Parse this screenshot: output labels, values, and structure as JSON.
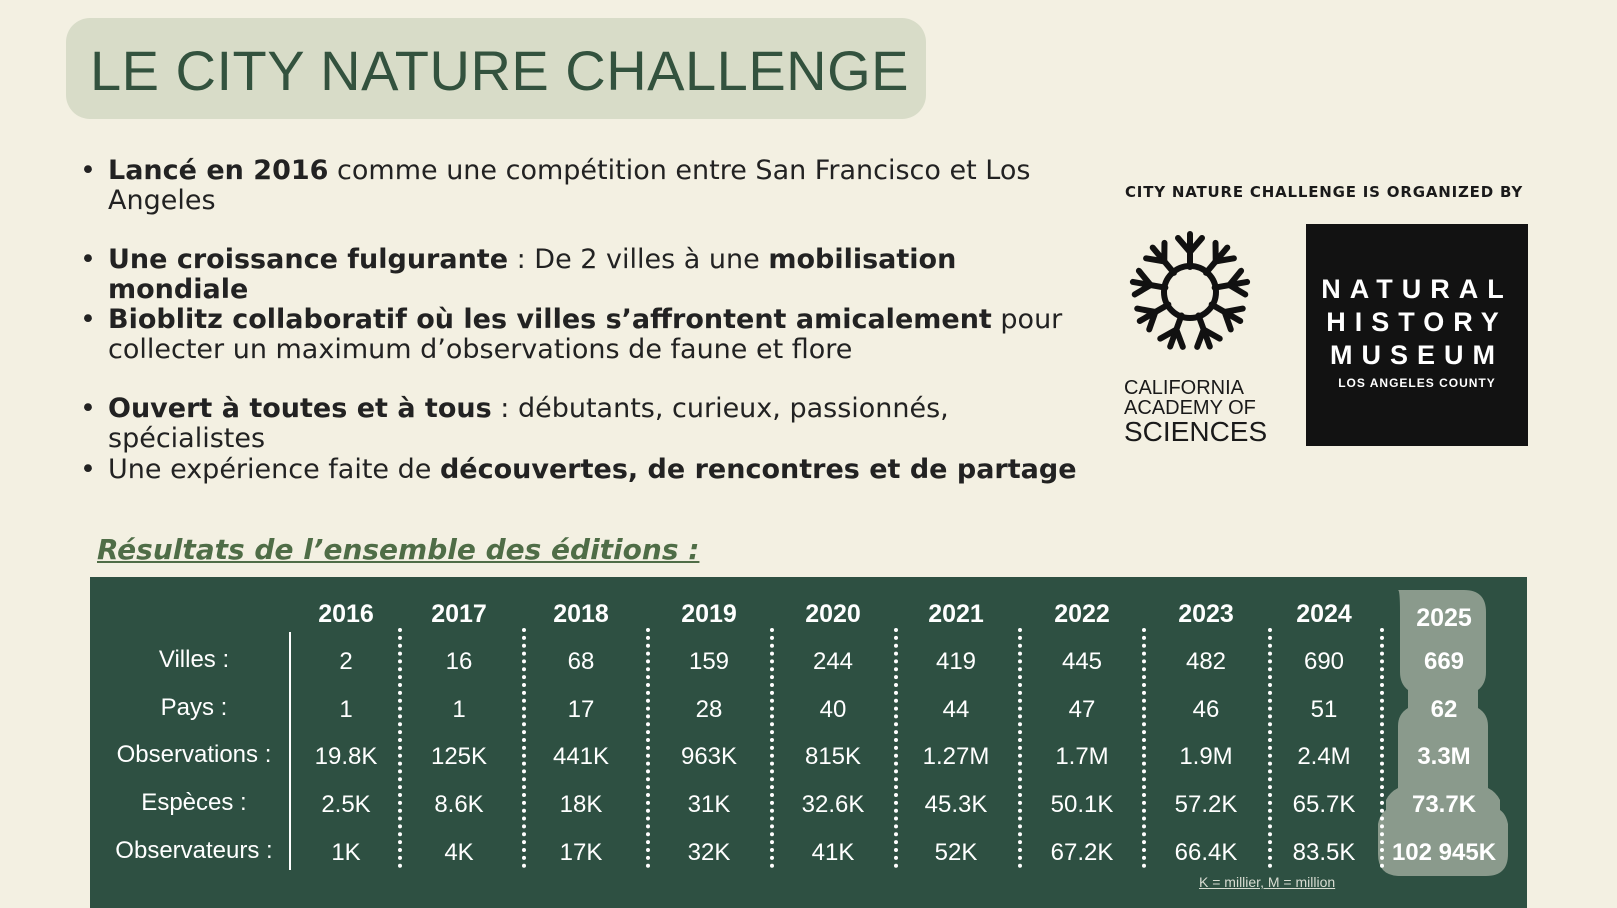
{
  "title": "LE CITY NATURE CHALLENGE",
  "bullets": [
    {
      "bold": "Lancé en 2016",
      "rest": " comme une compétition entre San Francisco et Los Angeles"
    },
    {
      "bold": "Une croissance fulgurante",
      "mid": " : De 2 villes à une ",
      "bold2": "mobilisation mondiale"
    },
    {
      "bold": "Bioblitz collaboratif où les villes s’affrontent amicalement",
      "rest": " pour collecter un maximum d’observations de faune et flore"
    },
    {
      "bold": "Ouvert à toutes et à tous",
      "rest": " : débutants, curieux, passionnés, spécialistes"
    },
    {
      "plain": "Une expérience faite de ",
      "bold": "découvertes, de rencontres et de partage"
    }
  ],
  "organizers": {
    "label": "CITY NATURE CHALLENGE IS ORGANIZED BY",
    "cas": {
      "line1": "CALIFORNIA",
      "line2": "ACADEMY OF",
      "line3": "SCIENCES"
    },
    "nhm": {
      "line1": "NATURAL",
      "line2": "HISTORY",
      "line3": "MUSEUM",
      "sub": "LOS ANGELES COUNTY"
    }
  },
  "results": {
    "heading": "Résultats de l’ensemble des éditions :",
    "row_labels": [
      "Villes :",
      "Pays :",
      "Observations :",
      "Espèces :",
      "Observateurs :"
    ],
    "years": [
      "2016",
      "2017",
      "2018",
      "2019",
      "2020",
      "2021",
      "2022",
      "2023",
      "2024",
      "2025"
    ],
    "columns": [
      [
        "2",
        "1",
        "19.8K",
        "2.5K",
        "1K"
      ],
      [
        "16",
        "1",
        "125K",
        "8.6K",
        "4K"
      ],
      [
        "68",
        "17",
        "441K",
        "18K",
        "17K"
      ],
      [
        "159",
        "28",
        "963K",
        "31K",
        "32K"
      ],
      [
        "244",
        "40",
        "815K",
        "32.6K",
        "41K"
      ],
      [
        "419",
        "44",
        "1.27M",
        "45.3K",
        "52K"
      ],
      [
        "445",
        "47",
        "1.7M",
        "50.1K",
        "67.2K"
      ],
      [
        "482",
        "46",
        "1.9M",
        "57.2K",
        "66.4K"
      ],
      [
        "690",
        "51",
        "2.4M",
        "65.7K",
        "83.5K"
      ],
      [
        "669",
        "62",
        "3.3M",
        "73.7K",
        "102 945K"
      ]
    ],
    "note": "K = millier,    M = million"
  },
  "colors": {
    "background": "#f3f0e2",
    "title_box": "#d8dcc8",
    "title_text": "#33523e",
    "table_bg": "#2e5042",
    "highlight_2025": "#8a9a8c"
  }
}
